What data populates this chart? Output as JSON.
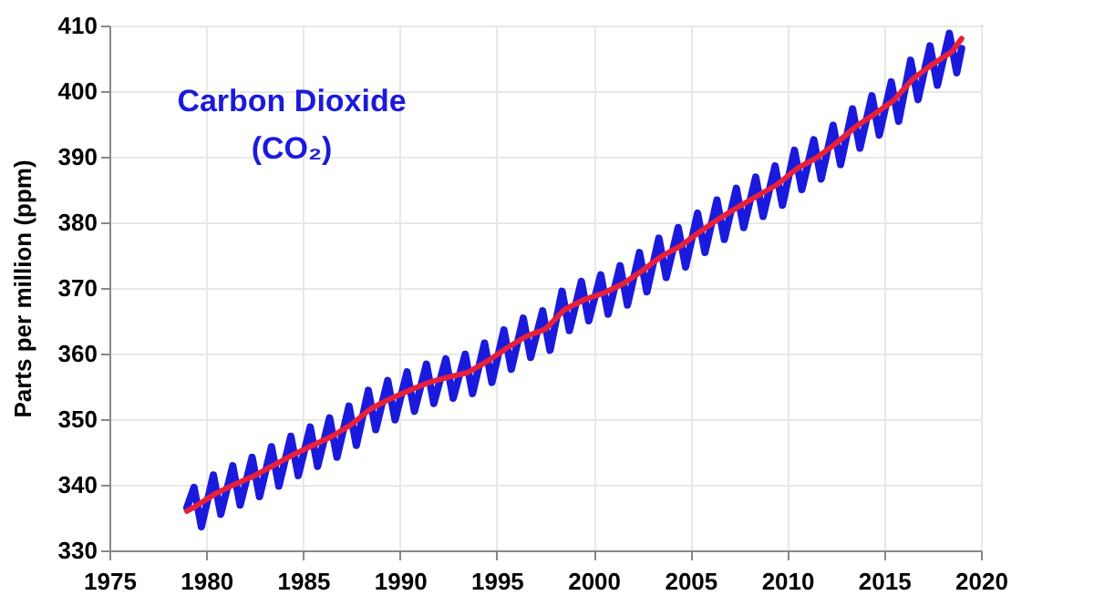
{
  "chart_data": {
    "type": "line",
    "ylabel": "Parts per million (ppm)",
    "annotations": [
      "Carbon Dioxide",
      "(CO₂)"
    ],
    "xlim": [
      1975,
      2020
    ],
    "xticks": [
      1975,
      1980,
      1985,
      1990,
      1995,
      2000,
      2005,
      2010,
      2015,
      2020
    ],
    "ylim": [
      330,
      410
    ],
    "yticks": [
      330,
      340,
      350,
      360,
      370,
      380,
      390,
      400,
      410
    ],
    "grid": true,
    "marker": "none",
    "line_style": "solid",
    "series": [
      {
        "color": "#1a1adc",
        "x": [
          1979.0,
          1979.37,
          1979.75,
          1980.37,
          1980.75,
          1981.37,
          1981.75,
          1982.37,
          1982.75,
          1983.37,
          1983.75,
          1984.37,
          1984.75,
          1985.37,
          1985.75,
          1986.37,
          1986.75,
          1987.37,
          1987.75,
          1988.37,
          1988.75,
          1989.37,
          1989.75,
          1990.37,
          1990.75,
          1991.37,
          1991.75,
          1992.37,
          1992.75,
          1993.37,
          1993.75,
          1994.37,
          1994.75,
          1995.37,
          1995.75,
          1996.37,
          1996.75,
          1997.37,
          1997.75,
          1998.37,
          1998.75,
          1999.37,
          1999.75,
          2000.37,
          2000.75,
          2001.37,
          2001.75,
          2002.37,
          2002.75,
          2003.37,
          2003.75,
          2004.37,
          2004.75,
          2005.37,
          2005.75,
          2006.37,
          2006.75,
          2007.37,
          2007.75,
          2008.37,
          2008.75,
          2009.37,
          2009.75,
          2010.37,
          2010.75,
          2011.37,
          2011.75,
          2012.37,
          2012.75,
          2013.37,
          2013.75,
          2014.37,
          2014.75,
          2015.37,
          2015.75,
          2016.37,
          2016.75,
          2017.37,
          2017.75,
          2018.37,
          2018.75,
          2019.0
        ],
        "values": [
          336.5,
          339.6,
          333.6,
          341.5,
          335.5,
          342.9,
          336.9,
          344.2,
          338.2,
          345.8,
          339.8,
          347.4,
          341.4,
          348.8,
          342.8,
          350.2,
          344.2,
          352.0,
          346.0,
          354.4,
          348.4,
          355.9,
          349.9,
          357.2,
          351.2,
          358.4,
          352.4,
          359.2,
          353.2,
          359.9,
          353.9,
          361.6,
          355.6,
          363.6,
          357.6,
          365.4,
          359.4,
          366.5,
          360.5,
          369.5,
          363.5,
          371.0,
          365.0,
          372.0,
          366.0,
          373.4,
          367.4,
          375.4,
          369.4,
          377.6,
          371.6,
          379.2,
          373.2,
          381.4,
          375.4,
          383.4,
          377.4,
          385.2,
          379.2,
          386.9,
          380.9,
          388.6,
          382.6,
          391.0,
          385.0,
          392.6,
          386.6,
          394.8,
          388.8,
          397.3,
          391.3,
          399.3,
          393.3,
          401.4,
          395.4,
          404.7,
          398.7,
          406.9,
          400.9,
          408.8,
          402.8,
          406.5
        ]
      },
      {
        "color": "#e8203a",
        "x": [
          1979.0,
          1979.5,
          1980.5,
          1981.5,
          1982.5,
          1983.5,
          1984.5,
          1985.5,
          1986.5,
          1987.5,
          1988.5,
          1989.5,
          1990.5,
          1991.5,
          1992.5,
          1993.5,
          1994.5,
          1995.5,
          1996.5,
          1997.5,
          1998.5,
          1999.5,
          2000.5,
          2001.5,
          2002.5,
          2003.5,
          2004.5,
          2005.5,
          2006.5,
          2007.5,
          2008.5,
          2009.5,
          2010.5,
          2011.5,
          2012.5,
          2013.5,
          2014.5,
          2015.5,
          2016.5,
          2017.5,
          2018.5,
          2019.0
        ],
        "values": [
          336.0,
          336.8,
          338.7,
          340.1,
          341.4,
          343.0,
          344.6,
          346.0,
          347.4,
          349.2,
          351.6,
          353.1,
          354.4,
          355.6,
          356.4,
          357.1,
          358.8,
          360.8,
          362.6,
          363.7,
          366.7,
          368.2,
          369.2,
          370.6,
          372.6,
          374.8,
          376.4,
          378.6,
          380.6,
          382.4,
          384.1,
          385.8,
          388.2,
          389.8,
          392.0,
          394.5,
          396.5,
          398.6,
          401.9,
          404.1,
          406.0,
          408.0
        ]
      }
    ]
  }
}
